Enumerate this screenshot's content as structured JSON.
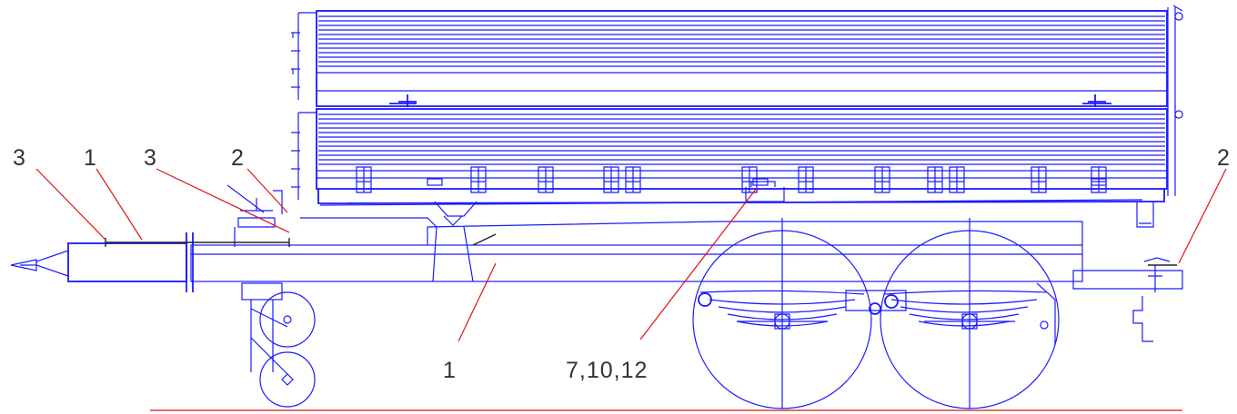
{
  "callouts": [
    {
      "id": "c3a",
      "text": "3"
    },
    {
      "id": "c1a",
      "text": "1"
    },
    {
      "id": "c3b",
      "text": "3"
    },
    {
      "id": "c2a",
      "text": "2"
    },
    {
      "id": "c1b",
      "text": "1"
    },
    {
      "id": "c7",
      "text": "7,10,12"
    },
    {
      "id": "c2b",
      "text": "2"
    }
  ],
  "colors": {
    "drawing": "#1a1aff",
    "leader": "#e01010",
    "text": "#333333",
    "part_edge": "#222222"
  }
}
